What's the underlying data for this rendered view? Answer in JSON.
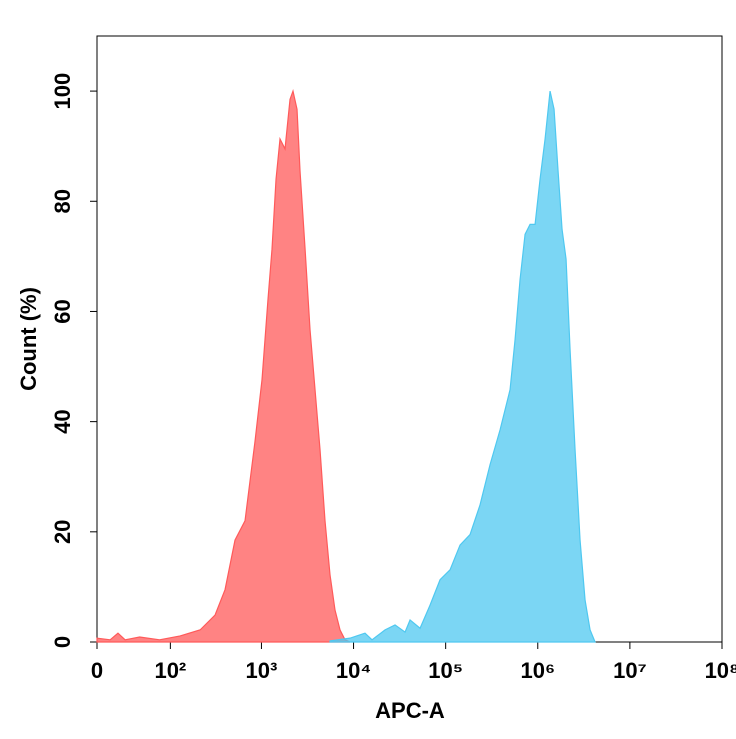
{
  "chart_data": {
    "type": "histogram-overlay",
    "xlabel": "APC-A",
    "ylabel": "Count (%)",
    "x_scale": "biexponential",
    "xlim": [
      0,
      100000000
    ],
    "xticks": [
      0,
      {
        "value": 100,
        "label": "10²"
      },
      {
        "value": 1000,
        "label": "10³"
      },
      {
        "value": 10000,
        "label": "10⁴"
      },
      {
        "value": 100000,
        "label": "10⁵"
      },
      {
        "value": 1000000,
        "label": "10⁶"
      },
      {
        "value": 10000000,
        "label": "10⁷"
      },
      {
        "value": 100000000,
        "label": "10⁸"
      }
    ],
    "ylim": [
      0,
      110
    ],
    "yticks": [
      0,
      20,
      40,
      60,
      80,
      100
    ],
    "series": [
      {
        "color": "#ff5a5a",
        "x": [
          0,
          11,
          18,
          25,
          42,
          75,
          129,
          215,
          313,
          402,
          516,
          663,
          851,
          1014,
          1178,
          1302,
          1440,
          1591,
          1803,
          2043,
          2201,
          2434,
          2624,
          2978,
          3369,
          3818,
          4326,
          4900,
          5553,
          6291,
          7131,
          8082,
          9158
        ],
        "values": [
          0.7,
          0.4,
          1.6,
          0.4,
          0.9,
          0.4,
          1.1,
          2.2,
          4.9,
          9.5,
          18.5,
          22,
          36.4,
          47.6,
          62.2,
          71.3,
          84,
          91.3,
          89.5,
          98.5,
          100,
          96.7,
          85.5,
          71.3,
          56.7,
          45.8,
          34.9,
          22,
          12.2,
          5.8,
          2.2,
          0.4,
          0
        ]
      },
      {
        "color": "#4fc8f0",
        "x": [
          5553,
          9158,
          13320,
          15870,
          21980,
          28220,
          36240,
          41060,
          52740,
          67700,
          86950,
          111600,
          143300,
          184000,
          236300,
          303400,
          389600,
          500200,
          566800,
          642200,
          727800,
          824600,
          934500,
          1058800,
          1199800,
          1359600,
          1502600,
          1660700,
          1835200,
          2028400,
          2241600,
          2540000,
          2878000,
          3262000,
          3696000,
          4188000
        ],
        "values": [
          0.2,
          0.7,
          1.6,
          0.4,
          2.2,
          3.1,
          1.8,
          4,
          2.5,
          6.7,
          11.3,
          13.1,
          17.6,
          19.5,
          24.9,
          32.2,
          38.5,
          45.8,
          54.9,
          65.8,
          74,
          75.8,
          75.8,
          84,
          91.3,
          100,
          96.7,
          85.5,
          74.9,
          69.5,
          53.1,
          34.9,
          18.5,
          7.6,
          2.2,
          0
        ]
      }
    ]
  }
}
